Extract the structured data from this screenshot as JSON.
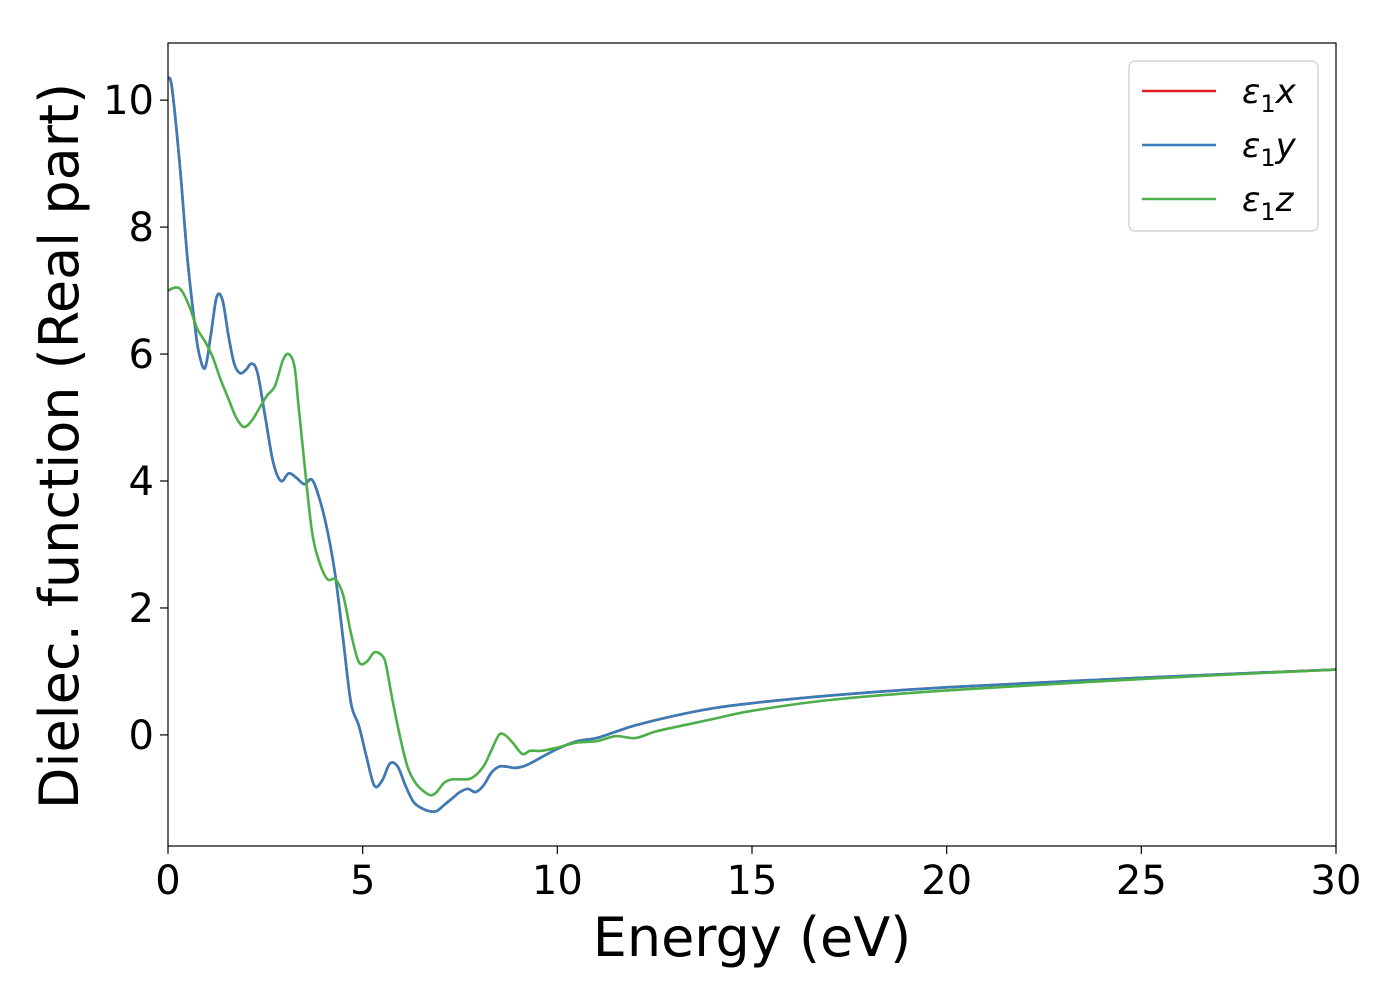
{
  "chart_data": {
    "type": "line",
    "xlabel": "Energy (eV)",
    "ylabel": "Dielec. function (Real part)",
    "xlim": [
      0,
      30
    ],
    "ylim": [
      -1.75,
      10.9
    ],
    "xticks": [
      0,
      5,
      10,
      15,
      20,
      25,
      30
    ],
    "yticks": [
      0,
      2,
      4,
      6,
      8,
      10
    ],
    "grid": false,
    "legend_position": "top-right",
    "series": [
      {
        "name": "ε1x",
        "color": "#e41a1c",
        "legend": {
          "base": "ε",
          "sub": "1",
          "tail": "x"
        },
        "x": [
          0,
          0.1,
          0.3,
          0.5,
          0.7,
          0.8,
          0.95,
          1.1,
          1.25,
          1.4,
          1.55,
          1.7,
          1.85,
          2.0,
          2.15,
          2.3,
          2.5,
          2.7,
          2.9,
          3.1,
          3.3,
          3.5,
          3.7,
          3.9,
          4.1,
          4.3,
          4.5,
          4.7,
          4.9,
          5.1,
          5.3,
          5.5,
          5.7,
          5.9,
          6.1,
          6.3,
          6.5,
          6.7,
          6.9,
          7.1,
          7.3,
          7.5,
          7.7,
          7.9,
          8.1,
          8.3,
          8.5,
          8.7,
          8.9,
          9.1,
          9.3,
          9.6,
          10.0,
          10.5,
          11.0,
          11.5,
          12.0,
          13.0,
          14.0,
          15.0,
          17.0,
          20.0,
          25.0,
          30.0
        ],
        "y": [
          10.35,
          10.2,
          9.0,
          7.5,
          6.4,
          6.0,
          5.78,
          6.3,
          6.9,
          6.85,
          6.3,
          5.85,
          5.7,
          5.75,
          5.85,
          5.7,
          5.0,
          4.3,
          4.0,
          4.12,
          4.05,
          3.95,
          4.02,
          3.7,
          3.2,
          2.5,
          1.5,
          0.5,
          0.15,
          -0.35,
          -0.8,
          -0.72,
          -0.45,
          -0.5,
          -0.8,
          -1.05,
          -1.15,
          -1.2,
          -1.2,
          -1.1,
          -1.0,
          -0.9,
          -0.85,
          -0.9,
          -0.8,
          -0.6,
          -0.5,
          -0.5,
          -0.52,
          -0.5,
          -0.45,
          -0.35,
          -0.22,
          -0.1,
          -0.05,
          0.05,
          0.15,
          0.3,
          0.42,
          0.5,
          0.62,
          0.75,
          0.9,
          1.03
        ]
      },
      {
        "name": "ε1y",
        "color": "#377eb8",
        "legend": {
          "base": "ε",
          "sub": "1",
          "tail": "y"
        },
        "x": [
          0,
          0.1,
          0.3,
          0.5,
          0.7,
          0.8,
          0.95,
          1.1,
          1.25,
          1.4,
          1.55,
          1.7,
          1.85,
          2.0,
          2.15,
          2.3,
          2.5,
          2.7,
          2.9,
          3.1,
          3.3,
          3.5,
          3.7,
          3.9,
          4.1,
          4.3,
          4.5,
          4.7,
          4.9,
          5.1,
          5.3,
          5.5,
          5.7,
          5.9,
          6.1,
          6.3,
          6.5,
          6.7,
          6.9,
          7.1,
          7.3,
          7.5,
          7.7,
          7.9,
          8.1,
          8.3,
          8.5,
          8.7,
          8.9,
          9.1,
          9.3,
          9.6,
          10.0,
          10.5,
          11.0,
          11.5,
          12.0,
          13.0,
          14.0,
          15.0,
          17.0,
          20.0,
          25.0,
          30.0
        ],
        "y": [
          10.35,
          10.2,
          9.0,
          7.5,
          6.4,
          6.0,
          5.78,
          6.3,
          6.9,
          6.85,
          6.3,
          5.85,
          5.7,
          5.75,
          5.85,
          5.7,
          5.0,
          4.3,
          4.0,
          4.12,
          4.05,
          3.95,
          4.02,
          3.7,
          3.2,
          2.5,
          1.5,
          0.5,
          0.15,
          -0.35,
          -0.8,
          -0.72,
          -0.45,
          -0.5,
          -0.8,
          -1.05,
          -1.15,
          -1.2,
          -1.2,
          -1.1,
          -1.0,
          -0.9,
          -0.85,
          -0.9,
          -0.8,
          -0.6,
          -0.5,
          -0.5,
          -0.52,
          -0.5,
          -0.45,
          -0.35,
          -0.22,
          -0.1,
          -0.05,
          0.05,
          0.15,
          0.3,
          0.42,
          0.5,
          0.62,
          0.75,
          0.9,
          1.03
        ]
      },
      {
        "name": "ε1z",
        "color": "#4daf4a",
        "legend": {
          "base": "ε",
          "sub": "1",
          "tail": "z"
        },
        "x": [
          0,
          0.2,
          0.35,
          0.55,
          0.75,
          0.95,
          1.15,
          1.35,
          1.55,
          1.75,
          1.95,
          2.15,
          2.35,
          2.55,
          2.75,
          2.95,
          3.1,
          3.25,
          3.35,
          3.5,
          3.7,
          3.9,
          4.1,
          4.3,
          4.5,
          4.7,
          4.9,
          5.1,
          5.3,
          5.5,
          5.6,
          5.75,
          5.95,
          6.15,
          6.35,
          6.55,
          6.75,
          6.9,
          7.1,
          7.3,
          7.5,
          7.8,
          8.1,
          8.3,
          8.5,
          8.65,
          8.85,
          9.1,
          9.3,
          9.6,
          10.0,
          10.5,
          11.0,
          11.5,
          12.0,
          12.5,
          13.0,
          14.0,
          15.0,
          17.0,
          20.0,
          25.0,
          30.0
        ],
        "y": [
          7.0,
          7.05,
          7.0,
          6.75,
          6.4,
          6.2,
          5.95,
          5.6,
          5.3,
          5.0,
          4.85,
          4.95,
          5.15,
          5.35,
          5.5,
          5.9,
          6.0,
          5.8,
          5.2,
          4.3,
          3.2,
          2.7,
          2.45,
          2.45,
          2.2,
          1.6,
          1.15,
          1.15,
          1.3,
          1.25,
          1.1,
          0.6,
          0.0,
          -0.5,
          -0.75,
          -0.88,
          -0.95,
          -0.9,
          -0.75,
          -0.7,
          -0.7,
          -0.68,
          -0.5,
          -0.25,
          0.0,
          0.0,
          -0.12,
          -0.3,
          -0.25,
          -0.25,
          -0.2,
          -0.12,
          -0.1,
          -0.02,
          -0.05,
          0.05,
          0.12,
          0.25,
          0.38,
          0.55,
          0.7,
          0.88,
          1.03
        ]
      }
    ]
  }
}
